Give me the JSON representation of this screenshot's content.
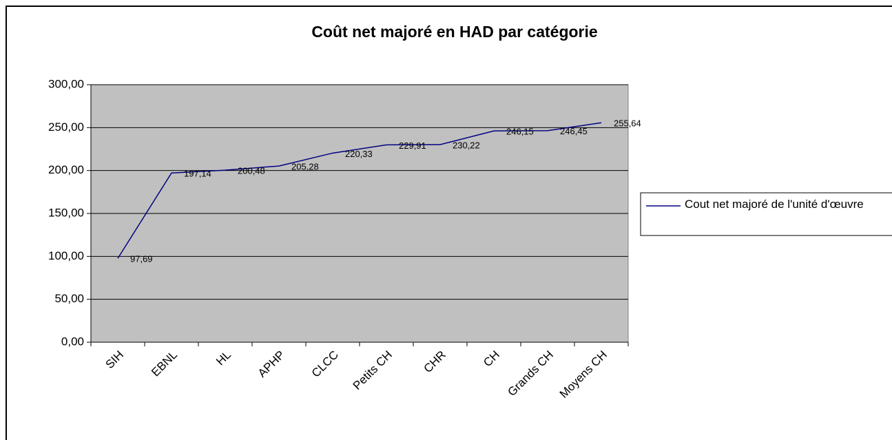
{
  "chart_data": {
    "type": "line",
    "title": "Coût net majoré en HAD par catégorie",
    "categories": [
      "SIH",
      "EBNL",
      "HL",
      "APHP",
      "CLCC",
      "Petits CH",
      "CHR",
      "CH",
      "Grands CH",
      "Moyens CH"
    ],
    "series": [
      {
        "name": "Cout net majoré de l'unité d'œuvre",
        "color": "#000080",
        "values": [
          97.69,
          197.14,
          200.48,
          205.28,
          220.33,
          229.91,
          230.22,
          246.15,
          246.45,
          255.64
        ],
        "value_labels": [
          "97,69",
          "197,14",
          "200,48",
          "205,28",
          "220,33",
          "229,91",
          "230,22",
          "246,15",
          "246,45",
          "255,64"
        ]
      }
    ],
    "ylim": [
      0,
      300
    ],
    "yticks": [
      {
        "value": 0,
        "label": "0,00"
      },
      {
        "value": 50,
        "label": "50,00"
      },
      {
        "value": 100,
        "label": "100,00"
      },
      {
        "value": 150,
        "label": "150,00"
      },
      {
        "value": 200,
        "label": "200,00"
      },
      {
        "value": 250,
        "label": "250,00"
      },
      {
        "value": 300,
        "label": "300,00"
      }
    ],
    "grid": true,
    "legend": "right"
  }
}
